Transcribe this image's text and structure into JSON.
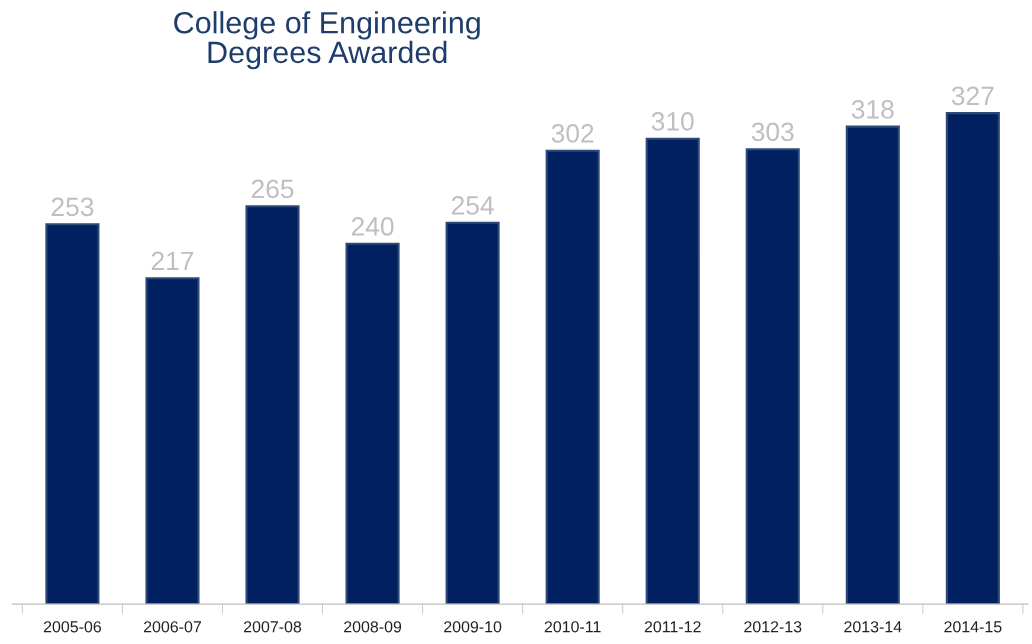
{
  "chart_data": {
    "type": "bar",
    "title": "College of Engineering\nDegrees Awarded",
    "categories": [
      "2005-06",
      "2006-07",
      "2007-08",
      "2008-09",
      "2009-10",
      "2010-11",
      "2011-12",
      "2012-13",
      "2013-14",
      "2014-15"
    ],
    "values": [
      253,
      217,
      265,
      240,
      254,
      302,
      310,
      303,
      318,
      327
    ],
    "color": "#002060",
    "tick_labels": "x",
    "data_labels": true
  }
}
